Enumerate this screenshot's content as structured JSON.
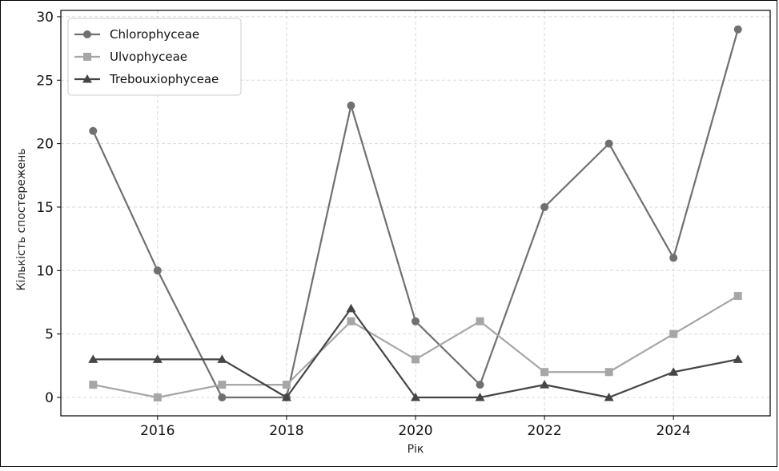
{
  "chart_data": {
    "type": "line",
    "title": "",
    "xlabel": "Рік",
    "ylabel": "Кількість спостережень",
    "x": [
      2015,
      2016,
      2017,
      2018,
      2019,
      2020,
      2021,
      2022,
      2023,
      2024,
      2025
    ],
    "xlim": [
      2014.5,
      2025.5
    ],
    "ylim": [
      -1.45,
      30.5
    ],
    "x_ticks": [
      2016,
      2018,
      2020,
      2022,
      2024
    ],
    "y_ticks": [
      0,
      5,
      10,
      15,
      20,
      25,
      30
    ],
    "grid": true,
    "legend_position": "top-left",
    "series": [
      {
        "name": "Chlorophyceae",
        "marker": "circle",
        "color": "#707070",
        "values": [
          21,
          10,
          0,
          0,
          23,
          6,
          1,
          15,
          20,
          11,
          29
        ]
      },
      {
        "name": "Ulvophyceae",
        "marker": "square",
        "color": "#a6a6a6",
        "values": [
          1,
          0,
          1,
          1,
          6,
          3,
          6,
          2,
          2,
          5,
          8
        ]
      },
      {
        "name": "Trebouxiophyceae",
        "marker": "triangle",
        "color": "#454545",
        "values": [
          3,
          3,
          3,
          0,
          7,
          0,
          0,
          1,
          0,
          2,
          3
        ]
      }
    ]
  }
}
